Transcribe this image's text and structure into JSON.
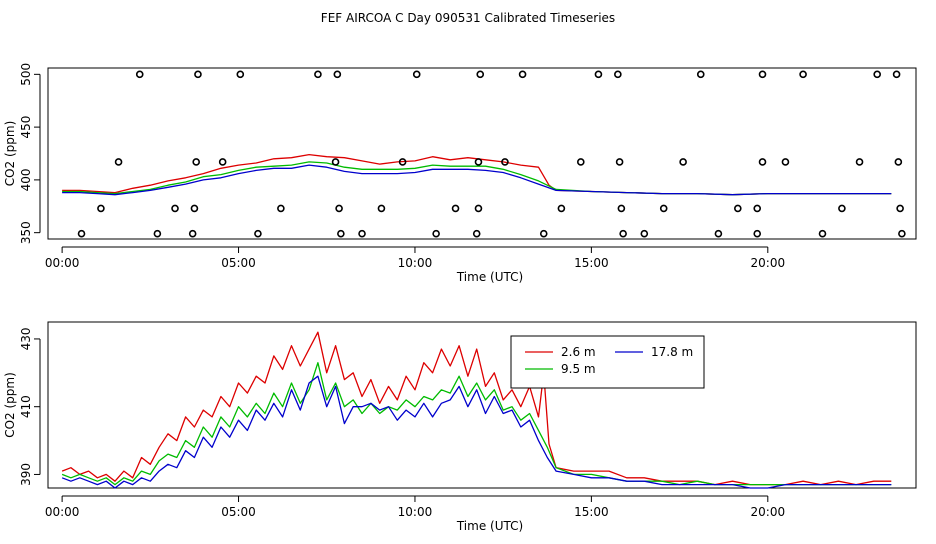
{
  "figure_title": "FEF AIRCOA C  Day 090531  Calibrated Timeseries",
  "colors": {
    "series_2_6": "#dd0000",
    "series_9_5": "#00bb00",
    "series_17_8": "#0000cc",
    "axis": "#000000",
    "markers": "#000000"
  },
  "chart_data": [
    {
      "type": "scatter",
      "title": "",
      "xlabel": "Time (UTC)",
      "ylabel": "CO2 (ppm)",
      "x_unit": "hours",
      "xlim": [
        -0.4,
        24.2
      ],
      "ylim": [
        344,
        506
      ],
      "xticks": [
        0,
        5,
        10,
        15,
        20
      ],
      "xtick_labels": [
        "00:00",
        "05:00",
        "10:00",
        "15:00",
        "20:00"
      ],
      "yticks": [
        350,
        400,
        450,
        500
      ],
      "ytick_labels": [
        "350",
        "400",
        "450",
        "500"
      ],
      "calibration_points": {
        "name": "calibration standards",
        "x": [
          2.2,
          3.85,
          5.05,
          7.25,
          7.8,
          10.05,
          11.85,
          13.05,
          15.2,
          15.75,
          18.1,
          19.85,
          21.0,
          23.1,
          23.65,
          1.6,
          3.8,
          4.55,
          7.75,
          9.65,
          11.8,
          12.55,
          14.7,
          15.8,
          17.6,
          19.85,
          20.5,
          22.6,
          23.7,
          1.1,
          3.2,
          3.75,
          6.2,
          7.85,
          9.05,
          11.15,
          11.8,
          14.15,
          15.85,
          17.05,
          19.15,
          19.7,
          22.1,
          23.75,
          0.55,
          2.7,
          3.7,
          5.55,
          7.9,
          8.5,
          10.6,
          11.75,
          13.65,
          15.9,
          16.5,
          18.6,
          19.7,
          21.55,
          23.8
        ],
        "y": [
          500,
          500,
          500,
          500,
          500,
          500,
          500,
          500,
          500,
          500,
          500,
          500,
          500,
          500,
          500,
          417,
          417,
          417,
          417,
          417,
          417,
          417,
          417,
          417,
          417,
          417,
          417,
          417,
          417,
          373,
          373,
          373,
          373,
          373,
          373,
          373,
          373,
          373,
          373,
          373,
          373,
          373,
          373,
          373,
          349,
          349,
          349,
          349,
          349,
          349,
          349,
          349,
          349,
          349,
          349,
          349,
          349,
          349,
          349
        ]
      },
      "series": [
        {
          "name": "2.6 m",
          "color": "#dd0000",
          "x": [
            0,
            0.5,
            1,
            1.5,
            2,
            2.5,
            3,
            3.5,
            4,
            4.5,
            5,
            5.5,
            6,
            6.5,
            7,
            7.5,
            8,
            8.5,
            9,
            9.5,
            10,
            10.5,
            11,
            11.5,
            12,
            12.5,
            13,
            13.5,
            13.8,
            14,
            15,
            16,
            17,
            18,
            19,
            20,
            21,
            22,
            23,
            23.5
          ],
          "y": [
            390,
            390,
            389,
            388,
            392,
            395,
            399,
            402,
            406,
            411,
            414,
            416,
            420,
            421,
            424,
            422,
            421,
            418,
            415,
            417,
            418,
            422,
            419,
            421,
            419,
            417,
            414,
            412,
            395,
            390,
            389,
            388,
            387,
            387,
            386,
            387,
            387,
            387,
            387,
            387
          ]
        },
        {
          "name": "9.5 m",
          "color": "#00bb00",
          "x": [
            0,
            0.5,
            1,
            1.5,
            2,
            2.5,
            3,
            3.5,
            4,
            4.5,
            5,
            5.5,
            6,
            6.5,
            7,
            7.5,
            8,
            8.5,
            9,
            9.5,
            10,
            10.5,
            11,
            11.5,
            12,
            12.5,
            13,
            13.5,
            14,
            15,
            16,
            17,
            18,
            19,
            20,
            21,
            22,
            23,
            23.5
          ],
          "y": [
            389,
            389,
            388,
            387,
            389,
            391,
            395,
            398,
            403,
            405,
            409,
            412,
            413,
            414,
            417,
            416,
            412,
            410,
            410,
            410,
            411,
            414,
            413,
            413,
            413,
            410,
            405,
            399,
            391,
            389,
            388,
            387,
            387,
            386,
            387,
            387,
            387,
            387,
            387
          ]
        },
        {
          "name": "17.8 m",
          "color": "#0000cc",
          "x": [
            0,
            0.5,
            1,
            1.5,
            2,
            2.5,
            3,
            3.5,
            4,
            4.5,
            5,
            5.5,
            6,
            6.5,
            7,
            7.5,
            8,
            8.5,
            9,
            9.5,
            10,
            10.5,
            11,
            11.5,
            12,
            12.5,
            13,
            13.5,
            14,
            15,
            16,
            17,
            18,
            19,
            20,
            21,
            22,
            23,
            23.5
          ],
          "y": [
            388,
            388,
            387,
            386,
            388,
            390,
            393,
            396,
            400,
            402,
            406,
            409,
            411,
            411,
            414,
            412,
            408,
            406,
            406,
            406,
            407,
            410,
            410,
            410,
            409,
            407,
            402,
            396,
            390,
            389,
            388,
            387,
            387,
            386,
            387,
            387,
            387,
            387,
            387
          ]
        }
      ]
    },
    {
      "type": "line",
      "title": "",
      "xlabel": "Time (UTC)",
      "ylabel": "CO2 (ppm)",
      "x_unit": "hours",
      "xlim": [
        -0.4,
        24.2
      ],
      "ylim": [
        386,
        435
      ],
      "xticks": [
        0,
        5,
        10,
        15,
        20
      ],
      "xtick_labels": [
        "00:00",
        "05:00",
        "10:00",
        "15:00",
        "20:00"
      ],
      "yticks": [
        390,
        410,
        430
      ],
      "ytick_labels": [
        "390",
        "410",
        "430"
      ],
      "legend": {
        "placement": "top-center",
        "entries": [
          {
            "label": "2.6 m",
            "color": "#dd0000"
          },
          {
            "label": "17.8 m",
            "color": "#0000cc"
          },
          {
            "label": "9.5 m",
            "color": "#00bb00"
          }
        ]
      },
      "series": [
        {
          "name": "2.6 m",
          "color": "#dd0000",
          "x": [
            0,
            0.25,
            0.5,
            0.75,
            1,
            1.25,
            1.5,
            1.75,
            2,
            2.25,
            2.5,
            2.75,
            3,
            3.25,
            3.5,
            3.75,
            4,
            4.25,
            4.5,
            4.75,
            5,
            5.25,
            5.5,
            5.75,
            6,
            6.25,
            6.5,
            6.75,
            7,
            7.25,
            7.5,
            7.75,
            8,
            8.25,
            8.5,
            8.75,
            9,
            9.25,
            9.5,
            9.75,
            10,
            10.25,
            10.5,
            10.75,
            11,
            11.25,
            11.5,
            11.75,
            12,
            12.25,
            12.5,
            12.75,
            13,
            13.25,
            13.5,
            13.65,
            13.8,
            14,
            14.5,
            15,
            15.5,
            16,
            16.5,
            17,
            17.5,
            18,
            18.5,
            19,
            19.5,
            20,
            20.5,
            21,
            21.5,
            22,
            22.5,
            23,
            23.5
          ],
          "y": [
            391,
            392,
            390,
            391,
            389,
            390,
            388,
            391,
            389,
            395,
            393,
            398,
            402,
            400,
            407,
            404,
            409,
            407,
            413,
            410,
            417,
            414,
            419,
            417,
            425,
            421,
            428,
            422,
            427,
            432,
            420,
            428,
            418,
            420,
            413,
            418,
            411,
            416,
            412,
            419,
            415,
            423,
            420,
            427,
            422,
            428,
            419,
            427,
            416,
            420,
            412,
            415,
            410,
            416,
            407,
            420,
            399,
            392,
            391,
            391,
            391,
            389,
            389,
            388,
            388,
            388,
            387,
            388,
            387,
            387,
            387,
            388,
            387,
            388,
            387,
            388,
            388
          ]
        },
        {
          "name": "9.5 m",
          "color": "#00bb00",
          "x": [
            0,
            0.25,
            0.5,
            0.75,
            1,
            1.25,
            1.5,
            1.75,
            2,
            2.25,
            2.5,
            2.75,
            3,
            3.25,
            3.5,
            3.75,
            4,
            4.25,
            4.5,
            4.75,
            5,
            5.25,
            5.5,
            5.75,
            6,
            6.25,
            6.5,
            6.75,
            7,
            7.25,
            7.5,
            7.75,
            8,
            8.25,
            8.5,
            8.75,
            9,
            9.25,
            9.5,
            9.75,
            10,
            10.25,
            10.5,
            10.75,
            11,
            11.25,
            11.5,
            11.75,
            12,
            12.25,
            12.5,
            12.75,
            13,
            13.25,
            13.5,
            13.75,
            14,
            14.5,
            15,
            15.5,
            16,
            16.5,
            17,
            17.5,
            18,
            18.5,
            19,
            19.5,
            20,
            20.5,
            21,
            21.5,
            22,
            22.5,
            23,
            23.5
          ],
          "y": [
            390,
            389,
            390,
            389,
            388,
            389,
            387,
            389,
            388,
            391,
            390,
            394,
            396,
            395,
            400,
            398,
            404,
            401,
            407,
            404,
            410,
            407,
            411,
            408,
            414,
            410,
            417,
            411,
            415,
            423,
            412,
            417,
            410,
            412,
            408,
            411,
            408,
            410,
            409,
            412,
            410,
            413,
            412,
            415,
            414,
            419,
            413,
            417,
            412,
            415,
            409,
            410,
            406,
            408,
            403,
            398,
            392,
            390,
            390,
            389,
            388,
            388,
            388,
            387,
            388,
            387,
            387,
            387,
            387,
            387,
            387,
            387,
            387,
            387,
            387,
            387
          ]
        },
        {
          "name": "17.8 m",
          "color": "#0000cc",
          "x": [
            0,
            0.25,
            0.5,
            0.75,
            1,
            1.25,
            1.5,
            1.75,
            2,
            2.25,
            2.5,
            2.75,
            3,
            3.25,
            3.5,
            3.75,
            4,
            4.25,
            4.5,
            4.75,
            5,
            5.25,
            5.5,
            5.75,
            6,
            6.25,
            6.5,
            6.75,
            7,
            7.25,
            7.5,
            7.75,
            8,
            8.25,
            8.5,
            8.75,
            9,
            9.25,
            9.5,
            9.75,
            10,
            10.25,
            10.5,
            10.75,
            11,
            11.25,
            11.5,
            11.75,
            12,
            12.25,
            12.5,
            12.75,
            13,
            13.25,
            13.5,
            13.75,
            14,
            14.5,
            15,
            15.5,
            16,
            16.5,
            17,
            17.5,
            18,
            18.5,
            19,
            19.5,
            20,
            20.5,
            21,
            21.5,
            22,
            22.5,
            23,
            23.5
          ],
          "y": [
            389,
            388,
            389,
            388,
            387,
            388,
            386,
            388,
            387,
            389,
            388,
            391,
            393,
            392,
            397,
            395,
            401,
            398,
            404,
            401,
            406,
            403,
            409,
            406,
            411,
            407,
            415,
            409,
            417,
            419,
            410,
            416,
            405,
            410,
            410,
            411,
            409,
            410,
            406,
            409,
            407,
            411,
            407,
            411,
            412,
            416,
            410,
            415,
            408,
            413,
            408,
            409,
            404,
            406,
            400,
            395,
            391,
            390,
            389,
            389,
            388,
            388,
            387,
            387,
            387,
            387,
            387,
            386,
            386,
            387,
            387,
            387,
            387,
            387,
            387,
            387
          ]
        }
      ]
    }
  ]
}
